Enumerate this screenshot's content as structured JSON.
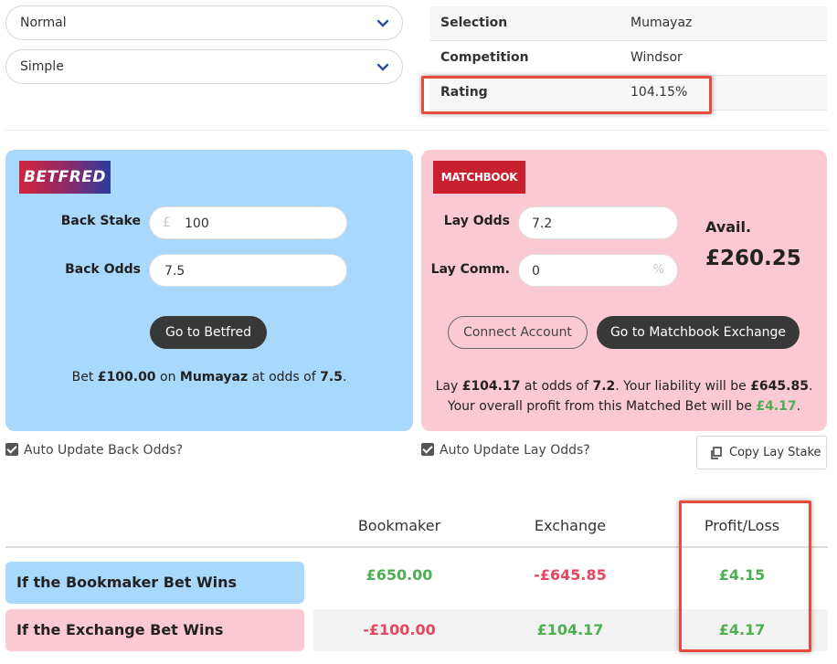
{
  "dropdowns": [
    {
      "value": "Normal"
    },
    {
      "value": "Simple"
    }
  ],
  "info": {
    "rows": [
      {
        "label": "Selection",
        "value": "Mumayaz"
      },
      {
        "label": "Competition",
        "value": "Windsor"
      },
      {
        "label": "Rating",
        "value": "104.15%"
      }
    ]
  },
  "back": {
    "logo_text": "BETFRED",
    "stake_label": "Back Stake",
    "stake_prefix": "£",
    "stake_value": "100",
    "odds_label": "Back Odds",
    "odds_value": "7.5",
    "go_button": "Go to Betfred",
    "msg_pre": "Bet ",
    "msg_amount": "£100.00",
    "msg_mid1": " on ",
    "msg_selection": "Mumayaz",
    "msg_mid2": " at odds of ",
    "msg_odds": "7.5",
    "msg_end": ".",
    "auto_update": "Auto Update Back Odds?"
  },
  "lay": {
    "logo_text": "MATCHBOOK",
    "odds_label": "Lay Odds",
    "odds_value": "7.2",
    "comm_label": "Lay Comm.",
    "comm_value": "0",
    "comm_suffix": "%",
    "avail_label": "Avail.",
    "avail_value": "£260.25",
    "connect_button": "Connect Account",
    "go_button": "Go to Matchbook Exchange",
    "msg1_pre": "Lay ",
    "msg1_amount": "£104.17",
    "msg1_mid": " at odds of ",
    "msg1_odds": "7.2",
    "msg1_mid2": ". Your liability will be ",
    "msg1_liability": "£645.85",
    "msg1_end": ".",
    "msg2_pre": "Your overall profit from this Matched Bet will be ",
    "msg2_profit": "£4.17",
    "msg2_end": ".",
    "auto_update": "Auto Update Lay Odds?",
    "copy_button": "Copy Lay Stake"
  },
  "results": {
    "headers": [
      "Bookmaker",
      "Exchange",
      "Profit/Loss"
    ],
    "rows": [
      {
        "label": "If the Bookmaker Bet Wins",
        "bookmaker": "£650.00",
        "exchange": "-£645.85",
        "profit": "£4.15"
      },
      {
        "label": "If the Exchange Bet Wins",
        "bookmaker": "-£100.00",
        "exchange": "£104.17",
        "profit": "£4.17"
      }
    ]
  },
  "colors": {
    "back_panel": "#a8d8fb",
    "lay_panel": "#fac9d3",
    "positive": "#4caf50",
    "negative": "#e8455f",
    "highlight": "#e84b3c"
  }
}
